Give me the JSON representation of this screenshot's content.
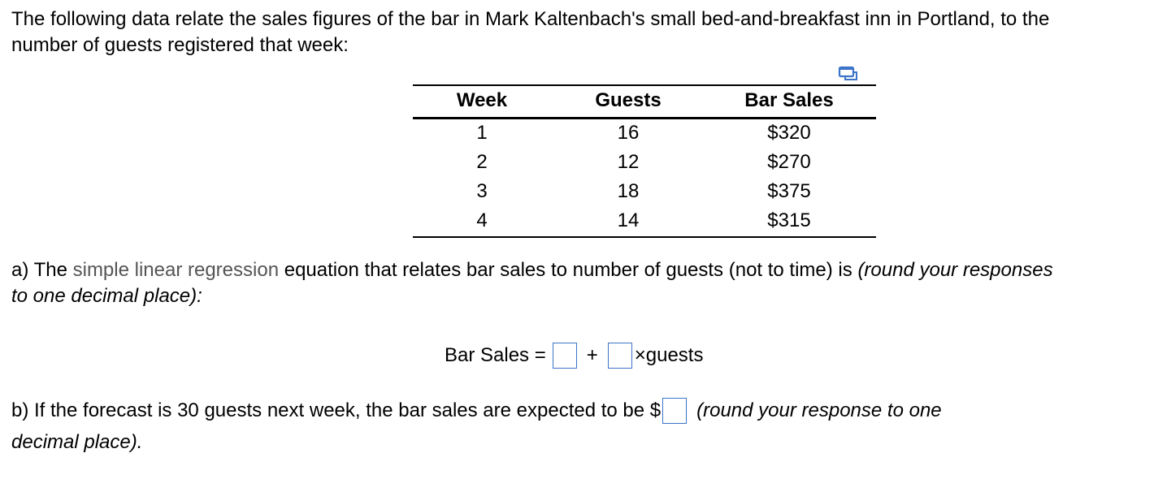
{
  "intro": {
    "line1": "The following data relate the sales figures of the bar in Mark Kaltenbach's small bed-and-breakfast inn in Portland, to the",
    "line2": "number of guests registered that week:"
  },
  "icons": {
    "copy": "copy-table-icon"
  },
  "table": {
    "headers": [
      "Week",
      "Guests",
      "Bar Sales"
    ],
    "rows": [
      [
        "1",
        "16",
        "$320"
      ],
      [
        "2",
        "12",
        "$270"
      ],
      [
        "3",
        "18",
        "$375"
      ],
      [
        "4",
        "14",
        "$315"
      ]
    ]
  },
  "question_a": {
    "prefix": "a) The ",
    "link_text": "simple linear regression",
    "middle": " equation that relates bar sales to number of guests (not to time) is ",
    "italic1": "(round your responses",
    "italic2": "to one decimal place):"
  },
  "equation": {
    "label": "Bar Sales =",
    "plus": "+",
    "times": "×guests",
    "intercept_value": "",
    "slope_value": ""
  },
  "question_b": {
    "prefix": "b) If the forecast is 30 guests next week, the bar sales are expected to be $",
    "answer_value": "",
    "italic1": "(round your response to one",
    "italic2": "decimal place)."
  },
  "colors": {
    "input_border": "#3b74c8",
    "link_text": "#555555",
    "icon": "#3b74c8"
  }
}
